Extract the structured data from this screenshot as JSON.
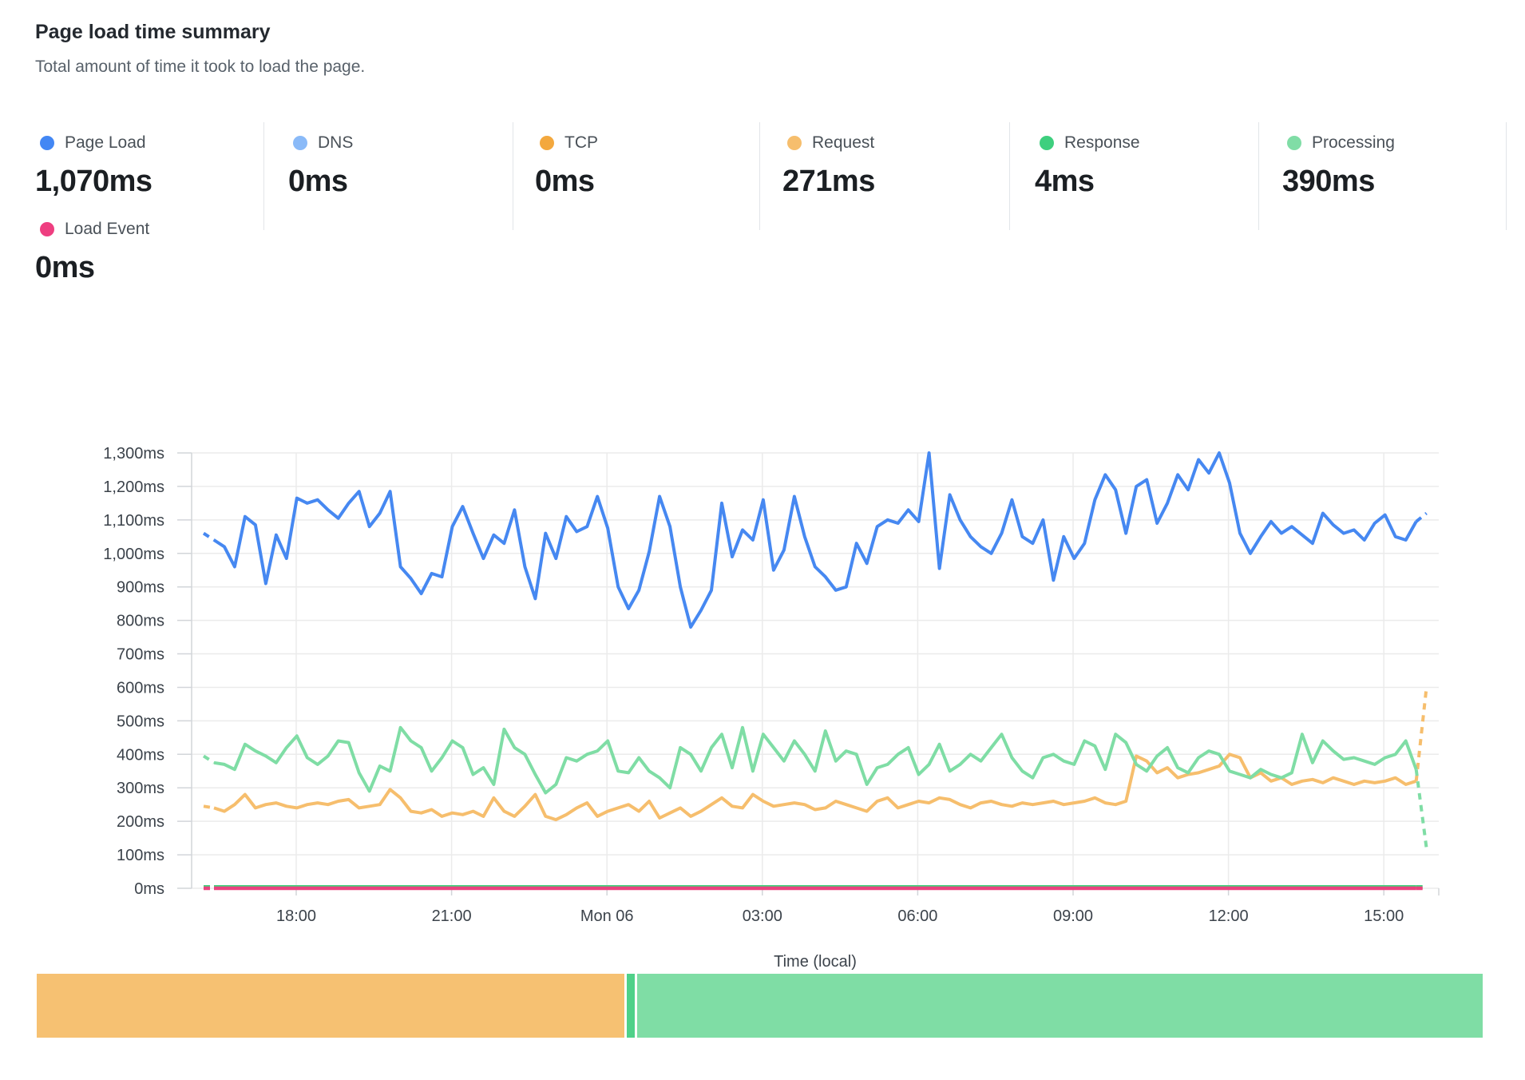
{
  "header": {
    "title": "Page load time summary",
    "subtitle": "Total amount of time it took to load the page."
  },
  "metrics": [
    {
      "id": "page_load",
      "label": "Page Load",
      "value": "1,070ms",
      "color": "#4387f4"
    },
    {
      "id": "dns",
      "label": "DNS",
      "value": "0ms",
      "color": "#8abaf8"
    },
    {
      "id": "tcp",
      "label": "TCP",
      "value": "0ms",
      "color": "#f3a83e"
    },
    {
      "id": "request",
      "label": "Request",
      "value": "271ms",
      "color": "#f6be6d"
    },
    {
      "id": "response",
      "label": "Response",
      "value": "4ms",
      "color": "#3ecf7e"
    },
    {
      "id": "processing",
      "label": "Processing",
      "value": "390ms",
      "color": "#80dda6"
    }
  ],
  "metrics_row2": [
    {
      "id": "load_event",
      "label": "Load Event",
      "value": "0ms",
      "color": "#ee3e80"
    }
  ],
  "chart_data": {
    "type": "line",
    "xlabel": "Time (local)",
    "ylabel": "",
    "ylim": [
      0,
      1300
    ],
    "grid": true,
    "legend_position": "top",
    "y_ticks": [
      {
        "label": "0ms",
        "value": 0
      },
      {
        "label": "100ms",
        "value": 100
      },
      {
        "label": "200ms",
        "value": 200
      },
      {
        "label": "300ms",
        "value": 300
      },
      {
        "label": "400ms",
        "value": 400
      },
      {
        "label": "500ms",
        "value": 500
      },
      {
        "label": "600ms",
        "value": 600
      },
      {
        "label": "700ms",
        "value": 700
      },
      {
        "label": "800ms",
        "value": 800
      },
      {
        "label": "900ms",
        "value": 900
      },
      {
        "label": "1,000ms",
        "value": 1000
      },
      {
        "label": "1,100ms",
        "value": 1100
      },
      {
        "label": "1,200ms",
        "value": 1200
      },
      {
        "label": "1,300ms",
        "value": 1300
      }
    ],
    "x_ticks": [
      "18:00",
      "21:00",
      "Mon 06",
      "03:00",
      "06:00",
      "09:00",
      "12:00",
      "15:00"
    ],
    "series": [
      {
        "name": "DNS",
        "color": "#8abaf8",
        "width": 2,
        "constant": 0,
        "count": 119
      },
      {
        "name": "TCP",
        "color": "#f3a83e",
        "width": 2,
        "constant": 0,
        "count": 119
      },
      {
        "name": "Request",
        "color": "#f6be6d",
        "width": 4,
        "values": [
          245,
          240,
          230,
          250,
          280,
          240,
          250,
          255,
          245,
          240,
          250,
          255,
          250,
          260,
          265,
          240,
          245,
          250,
          295,
          270,
          230,
          225,
          235,
          215,
          225,
          220,
          230,
          215,
          270,
          230,
          215,
          245,
          280,
          215,
          205,
          220,
          240,
          255,
          215,
          230,
          240,
          250,
          230,
          260,
          210,
          225,
          240,
          215,
          230,
          250,
          270,
          245,
          240,
          280,
          260,
          245,
          250,
          255,
          250,
          235,
          240,
          260,
          250,
          240,
          230,
          260,
          270,
          240,
          250,
          260,
          255,
          270,
          265,
          250,
          240,
          255,
          260,
          250,
          245,
          255,
          250,
          255,
          260,
          250,
          255,
          260,
          270,
          255,
          250,
          260,
          395,
          380,
          345,
          360,
          330,
          340,
          345,
          355,
          365,
          400,
          390,
          330,
          345,
          320,
          330,
          310,
          320,
          325,
          315,
          330,
          320,
          310,
          320,
          315,
          320,
          330,
          310,
          320,
          600
        ]
      },
      {
        "name": "Processing",
        "color": "#7fdda5",
        "width": 4,
        "values": [
          395,
          375,
          370,
          355,
          430,
          410,
          395,
          375,
          420,
          455,
          390,
          370,
          395,
          440,
          435,
          345,
          290,
          365,
          350,
          480,
          440,
          420,
          350,
          390,
          440,
          420,
          340,
          360,
          310,
          475,
          420,
          400,
          340,
          285,
          310,
          390,
          380,
          400,
          410,
          440,
          350,
          345,
          390,
          350,
          330,
          300,
          420,
          400,
          350,
          420,
          460,
          360,
          480,
          350,
          460,
          420,
          380,
          440,
          400,
          350,
          470,
          380,
          410,
          400,
          310,
          360,
          370,
          400,
          420,
          340,
          370,
          430,
          350,
          370,
          400,
          380,
          420,
          460,
          390,
          350,
          330,
          390,
          400,
          380,
          370,
          440,
          425,
          355,
          460,
          435,
          370,
          350,
          395,
          420,
          360,
          345,
          390,
          410,
          400,
          350,
          340,
          330,
          355,
          340,
          330,
          345,
          460,
          375,
          440,
          410,
          385,
          390,
          380,
          370,
          390,
          400,
          440,
          355,
          120
        ]
      },
      {
        "name": "Page Load",
        "color": "#4688f1",
        "width": 4,
        "values": [
          1060,
          1040,
          1020,
          960,
          1110,
          1085,
          910,
          1055,
          985,
          1165,
          1150,
          1160,
          1130,
          1105,
          1150,
          1185,
          1080,
          1120,
          1185,
          960,
          925,
          880,
          940,
          930,
          1080,
          1140,
          1060,
          985,
          1055,
          1030,
          1130,
          960,
          865,
          1060,
          985,
          1110,
          1065,
          1080,
          1170,
          1075,
          900,
          835,
          890,
          1005,
          1170,
          1080,
          900,
          780,
          830,
          890,
          1150,
          990,
          1070,
          1040,
          1160,
          950,
          1010,
          1170,
          1050,
          960,
          930,
          890,
          900,
          1030,
          970,
          1080,
          1100,
          1090,
          1130,
          1095,
          1300,
          955,
          1175,
          1100,
          1050,
          1020,
          1000,
          1060,
          1160,
          1050,
          1030,
          1100,
          920,
          1050,
          985,
          1030,
          1160,
          1235,
          1190,
          1060,
          1200,
          1220,
          1090,
          1150,
          1235,
          1190,
          1280,
          1240,
          1300,
          1210,
          1060,
          1000,
          1050,
          1095,
          1060,
          1080,
          1055,
          1030,
          1120,
          1085,
          1060,
          1070,
          1040,
          1090,
          1115,
          1050,
          1040,
          1095,
          1120
        ]
      },
      {
        "name": "Response",
        "color": "#45d17e",
        "width": 3,
        "constant": 6,
        "count": 119
      },
      {
        "name": "Load Event",
        "color": "#e9437f",
        "width": 4.5,
        "constant": 0,
        "count": 119
      }
    ]
  },
  "breakdown_bar": {
    "segments": [
      {
        "name": "Request",
        "color": "#f6c172",
        "weight": 271
      },
      {
        "name": "Response",
        "color": "#4fd189",
        "weight": 4
      },
      {
        "name": "Processing",
        "color": "#7fdda5",
        "weight": 390
      }
    ]
  }
}
